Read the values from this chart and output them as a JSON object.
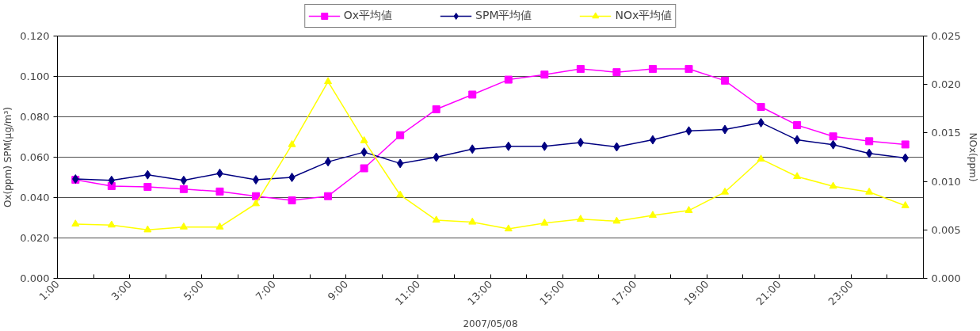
{
  "chart_data": {
    "type": "line",
    "xlabel": "2007/05/08",
    "ylabel": "Ox(ppm) SPM(μg/m³)",
    "y2label": "NOx(ppm)",
    "x": [
      1.5,
      2.5,
      3.5,
      4.5,
      5.5,
      6.5,
      7.5,
      8.5,
      9.5,
      10.5,
      11.5,
      12.5,
      13.5,
      14.5,
      15.5,
      16.5,
      17.5,
      18.5,
      19.5,
      20.5,
      21.5,
      22.5,
      23.5,
      24.5
    ],
    "xlim": [
      1,
      25
    ],
    "xticks": [
      {
        "value": 1,
        "label": "1:00"
      },
      {
        "value": 2,
        "label": null
      },
      {
        "value": 3,
        "label": "3:00"
      },
      {
        "value": 4,
        "label": null
      },
      {
        "value": 5,
        "label": "5:00"
      },
      {
        "value": 6,
        "label": null
      },
      {
        "value": 7,
        "label": "7:00"
      },
      {
        "value": 8,
        "label": null
      },
      {
        "value": 9,
        "label": "9:00"
      },
      {
        "value": 10,
        "label": null
      },
      {
        "value": 11,
        "label": "11:00"
      },
      {
        "value": 12,
        "label": null
      },
      {
        "value": 13,
        "label": "13:00"
      },
      {
        "value": 14,
        "label": null
      },
      {
        "value": 15,
        "label": "15:00"
      },
      {
        "value": 16,
        "label": null
      },
      {
        "value": 17,
        "label": "17:00"
      },
      {
        "value": 18,
        "label": null
      },
      {
        "value": 19,
        "label": "19:00"
      },
      {
        "value": 20,
        "label": null
      },
      {
        "value": 21,
        "label": "21:00"
      },
      {
        "value": 22,
        "label": null
      },
      {
        "value": 23,
        "label": "23:00"
      },
      {
        "value": 24,
        "label": null
      },
      {
        "value": 25,
        "label": null
      }
    ],
    "ylim": [
      0,
      0.12
    ],
    "yticks": [
      {
        "value": 0,
        "label": "0.000"
      },
      {
        "value": 0.02,
        "label": "0.020"
      },
      {
        "value": 0.04,
        "label": "0.040"
      },
      {
        "value": 0.06,
        "label": "0.060"
      },
      {
        "value": 0.08,
        "label": "0.080"
      },
      {
        "value": 0.1,
        "label": "0.100"
      },
      {
        "value": 0.12,
        "label": "0.120"
      }
    ],
    "y2lim": [
      0,
      0.025
    ],
    "y2ticks": [
      {
        "value": 0,
        "label": "0.000"
      },
      {
        "value": 0.005,
        "label": "0.005"
      },
      {
        "value": 0.01,
        "label": "0.010"
      },
      {
        "value": 0.015,
        "label": "0.015"
      },
      {
        "value": 0.02,
        "label": "0.020"
      },
      {
        "value": 0.025,
        "label": "0.025"
      }
    ],
    "grid": "y",
    "legend": "top",
    "line_style": "solid",
    "series": [
      {
        "name": "Ox平均値",
        "color": "#ff00ff",
        "marker": "square",
        "values": [
          0.0488,
          0.0457,
          0.0453,
          0.0442,
          0.043,
          0.0407,
          0.0386,
          0.0407,
          0.0545,
          0.0709,
          0.0837,
          0.091,
          0.0984,
          0.1009,
          0.1037,
          0.1021,
          0.1037,
          0.1037,
          0.0979,
          0.0849,
          0.0759,
          0.0703,
          0.0679,
          0.0663
        ]
      },
      {
        "name": "SPM平均値",
        "color": "#000080",
        "marker": "diamond",
        "values": [
          0.0492,
          0.0485,
          0.0513,
          0.0485,
          0.052,
          0.0488,
          0.05,
          0.0577,
          0.0625,
          0.0569,
          0.06,
          0.064,
          0.0654,
          0.0654,
          0.0673,
          0.0651,
          0.0686,
          0.073,
          0.0737,
          0.0771,
          0.0686,
          0.0662,
          0.0619,
          0.0596
        ]
      },
      {
        "name": "NOx平均値",
        "color": "#ffff00",
        "marker": "triangle",
        "axis": "y2",
        "values": [
          0.0056,
          0.0055,
          0.005,
          0.0053,
          0.0053,
          0.0077,
          0.0138,
          0.0203,
          0.0142,
          0.0086,
          0.006,
          0.0058,
          0.0051,
          0.0057,
          0.0061,
          0.0059,
          0.0065,
          0.007,
          0.0089,
          0.0123,
          0.0105,
          0.0095,
          0.0089,
          0.0075
        ]
      }
    ]
  }
}
